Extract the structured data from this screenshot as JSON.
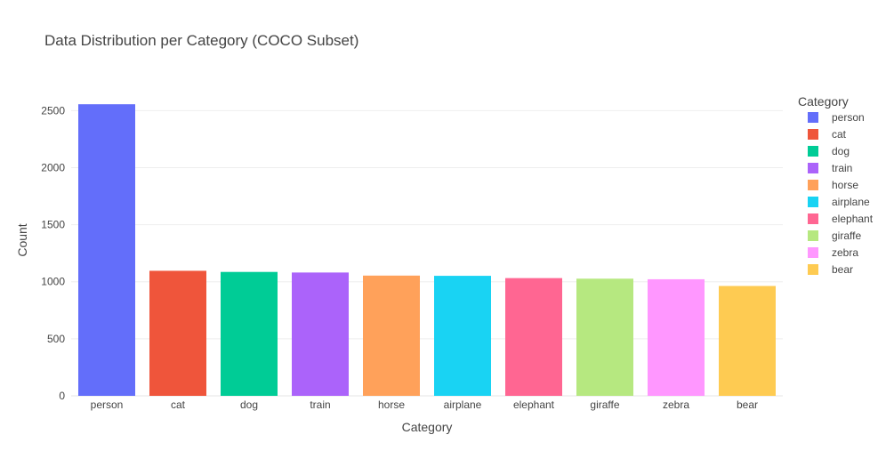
{
  "chart_data": {
    "type": "bar",
    "title": "Data Distribution per Category (COCO Subset)",
    "xlabel": "Category",
    "ylabel": "Count",
    "categories": [
      "person",
      "cat",
      "dog",
      "train",
      "horse",
      "airplane",
      "elephant",
      "giraffe",
      "zebra",
      "bear"
    ],
    "values": [
      2556,
      1096,
      1086,
      1081,
      1054,
      1052,
      1032,
      1027,
      1022,
      963
    ],
    "colors": [
      "#636EFA",
      "#EF553B",
      "#00CC96",
      "#AB63FA",
      "#FFA15A",
      "#19D3F3",
      "#FF6692",
      "#B6E880",
      "#FF97FF",
      "#FECB52"
    ],
    "yticks": [
      0,
      500,
      1000,
      1500,
      2000,
      2500
    ],
    "ylim": [
      0,
      2690
    ],
    "grid": true,
    "legend": {
      "title": "Category",
      "placement": "top-right"
    }
  }
}
